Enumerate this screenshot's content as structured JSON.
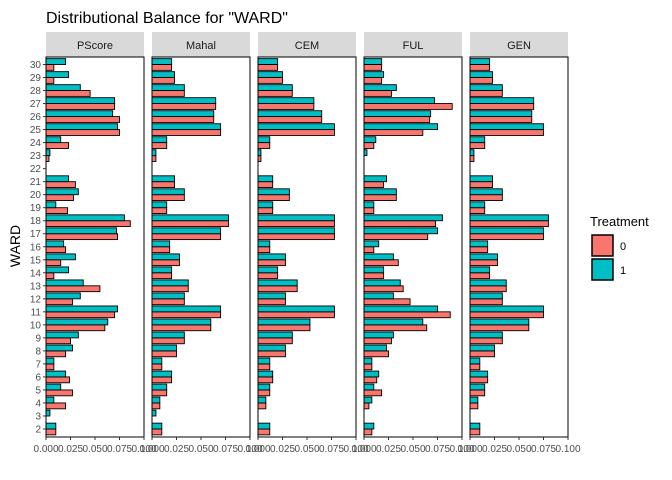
{
  "chart_data": {
    "type": "bar",
    "orientation": "horizontal",
    "title": "Distributional Balance for \"WARD\"",
    "ylabel": "WARD",
    "xlabel": "",
    "xlim": [
      0,
      0.1
    ],
    "x_ticks": [
      "0.000",
      "0.025",
      "0.050",
      "0.075",
      "0.100"
    ],
    "categories": [
      "2",
      "3",
      "4",
      "5",
      "6",
      "7",
      "8",
      "9",
      "10",
      "11",
      "12",
      "13",
      "14",
      "15",
      "16",
      "17",
      "18",
      "19",
      "20",
      "21",
      "22",
      "23",
      "24",
      "25",
      "26",
      "27",
      "28",
      "29",
      "30"
    ],
    "legend": {
      "title": "Treatment",
      "placement": "right",
      "entries": [
        "0",
        "1"
      ]
    },
    "colors": {
      "0": "#F8766D",
      "1": "#00BFC4",
      "strip_bg": "#D9D9D9"
    },
    "panels": [
      {
        "name": "PScore",
        "series": [
          {
            "name": "0",
            "values": [
              0.01,
              0.0,
              0.02,
              0.027,
              0.024,
              0.008,
              0.02,
              0.025,
              0.06,
              0.07,
              0.027,
              0.055,
              0.008,
              0.015,
              0.02,
              0.073,
              0.086,
              0.022,
              0.028,
              0.03,
              0.0,
              0.003,
              0.023,
              0.075,
              0.075,
              0.07,
              0.045,
              0.008,
              0.008
            ]
          },
          {
            "name": "1",
            "values": [
              0.01,
              0.004,
              0.008,
              0.015,
              0.02,
              0.008,
              0.027,
              0.033,
              0.063,
              0.073,
              0.035,
              0.038,
              0.023,
              0.03,
              0.018,
              0.072,
              0.08,
              0.01,
              0.033,
              0.023,
              0.0,
              0.004,
              0.015,
              0.073,
              0.068,
              0.07,
              0.035,
              0.023,
              0.02
            ]
          }
        ]
      },
      {
        "name": "Mahal",
        "series": [
          {
            "name": "0",
            "values": [
              0.01,
              0.0,
              0.008,
              0.015,
              0.02,
              0.01,
              0.025,
              0.033,
              0.06,
              0.07,
              0.033,
              0.037,
              0.02,
              0.028,
              0.018,
              0.07,
              0.078,
              0.015,
              0.033,
              0.023,
              0.0,
              0.004,
              0.015,
              0.07,
              0.063,
              0.065,
              0.033,
              0.023,
              0.02
            ]
          },
          {
            "name": "1",
            "values": [
              0.01,
              0.004,
              0.008,
              0.015,
              0.02,
              0.01,
              0.025,
              0.033,
              0.06,
              0.07,
              0.033,
              0.037,
              0.02,
              0.028,
              0.018,
              0.07,
              0.078,
              0.015,
              0.033,
              0.023,
              0.0,
              0.004,
              0.015,
              0.07,
              0.063,
              0.065,
              0.033,
              0.023,
              0.02
            ]
          }
        ]
      },
      {
        "name": "CEM",
        "series": [
          {
            "name": "0",
            "values": [
              0.012,
              0.0,
              0.008,
              0.012,
              0.015,
              0.012,
              0.028,
              0.035,
              0.053,
              0.078,
              0.028,
              0.04,
              0.02,
              0.028,
              0.012,
              0.078,
              0.078,
              0.015,
              0.032,
              0.015,
              0.0,
              0.003,
              0.012,
              0.078,
              0.065,
              0.057,
              0.035,
              0.025,
              0.02
            ]
          },
          {
            "name": "1",
            "values": [
              0.012,
              0.0,
              0.008,
              0.012,
              0.015,
              0.012,
              0.028,
              0.035,
              0.053,
              0.078,
              0.028,
              0.04,
              0.02,
              0.028,
              0.012,
              0.078,
              0.078,
              0.015,
              0.032,
              0.015,
              0.0,
              0.003,
              0.012,
              0.078,
              0.065,
              0.057,
              0.035,
              0.025,
              0.02
            ]
          }
        ]
      },
      {
        "name": "FUL",
        "series": [
          {
            "name": "0",
            "values": [
              0.008,
              0.0,
              0.005,
              0.018,
              0.013,
              0.008,
              0.025,
              0.028,
              0.064,
              0.088,
              0.047,
              0.04,
              0.02,
              0.035,
              0.01,
              0.065,
              0.073,
              0.01,
              0.033,
              0.02,
              0.0,
              0.0,
              0.01,
              0.06,
              0.067,
              0.09,
              0.028,
              0.018,
              0.018
            ]
          },
          {
            "name": "1",
            "values": [
              0.01,
              0.0,
              0.008,
              0.01,
              0.015,
              0.008,
              0.023,
              0.03,
              0.06,
              0.075,
              0.03,
              0.037,
              0.02,
              0.03,
              0.015,
              0.075,
              0.08,
              0.01,
              0.033,
              0.023,
              0.0,
              0.003,
              0.012,
              0.075,
              0.068,
              0.072,
              0.033,
              0.02,
              0.018
            ]
          }
        ]
      },
      {
        "name": "GEN",
        "series": [
          {
            "name": "0",
            "values": [
              0.01,
              0.0,
              0.008,
              0.015,
              0.018,
              0.01,
              0.025,
              0.033,
              0.06,
              0.075,
              0.033,
              0.037,
              0.02,
              0.028,
              0.018,
              0.075,
              0.08,
              0.015,
              0.033,
              0.023,
              0.0,
              0.004,
              0.015,
              0.075,
              0.063,
              0.065,
              0.033,
              0.023,
              0.02
            ]
          },
          {
            "name": "1",
            "values": [
              0.01,
              0.0,
              0.008,
              0.015,
              0.018,
              0.01,
              0.025,
              0.033,
              0.06,
              0.075,
              0.033,
              0.037,
              0.02,
              0.028,
              0.018,
              0.075,
              0.08,
              0.015,
              0.033,
              0.023,
              0.0,
              0.004,
              0.015,
              0.075,
              0.063,
              0.065,
              0.033,
              0.023,
              0.02
            ]
          }
        ]
      }
    ]
  }
}
